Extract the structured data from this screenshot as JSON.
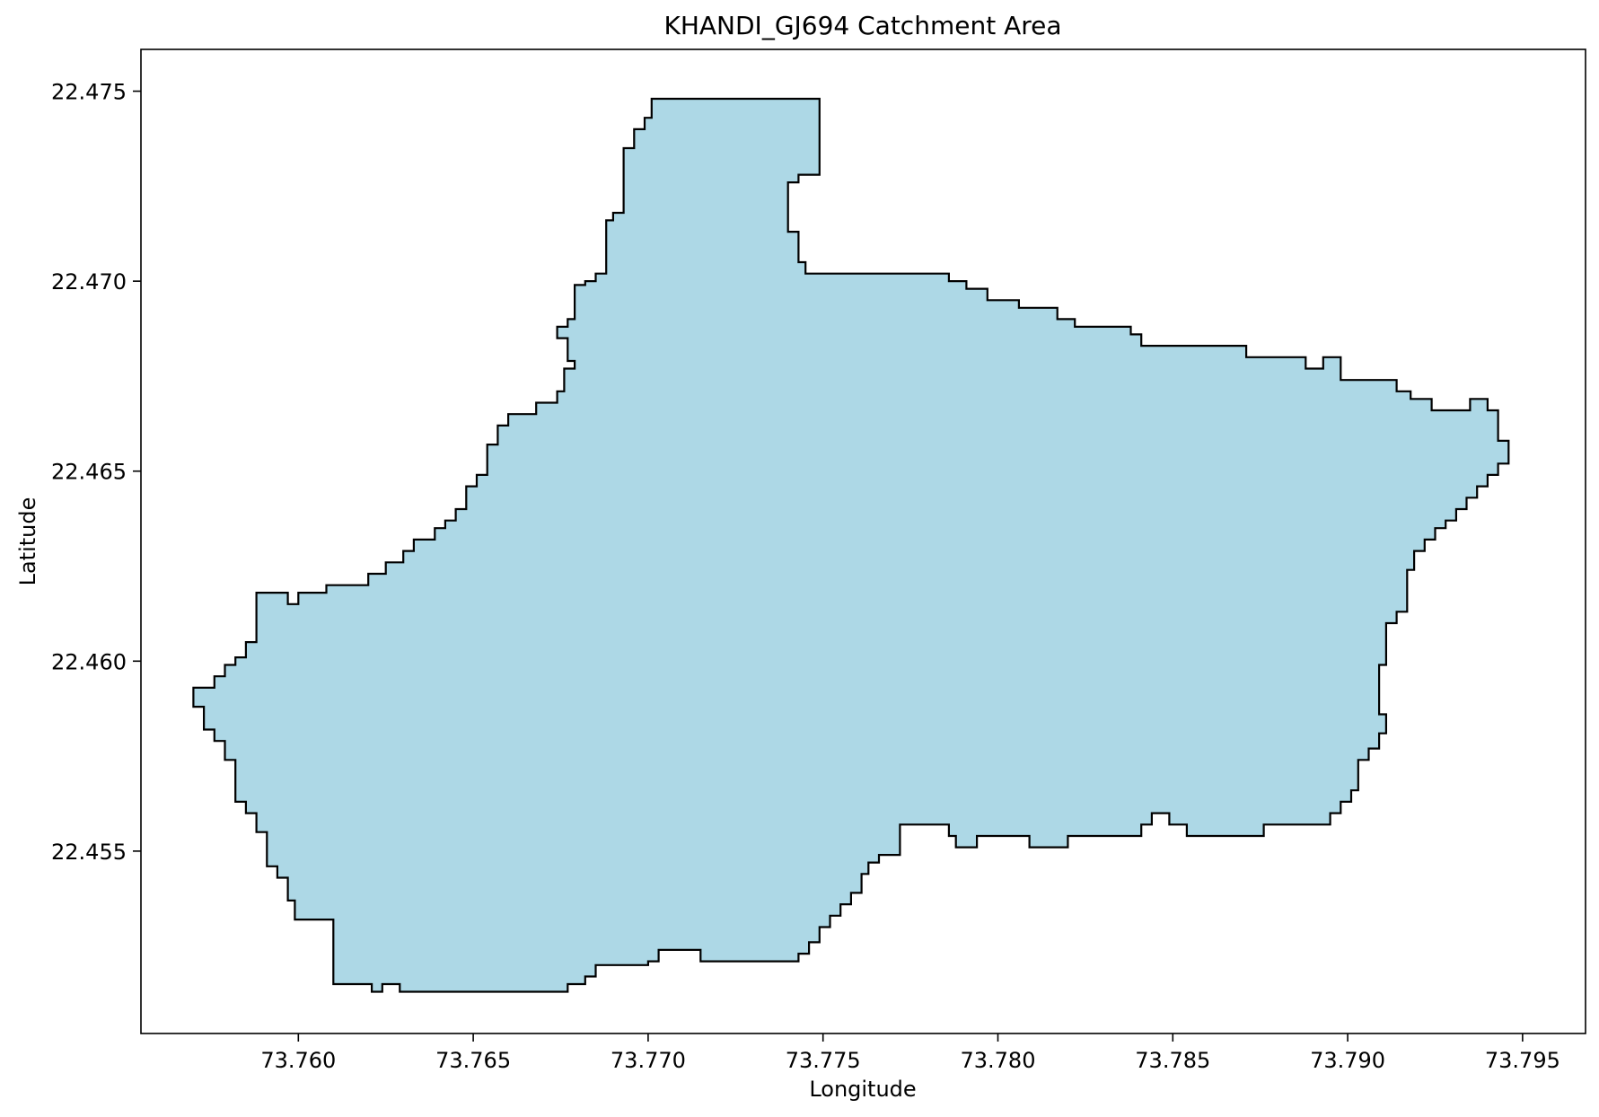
{
  "title": "KHANDI_GJ694 Catchment Area",
  "xlabel": "Longitude",
  "ylabel": "Latitude",
  "x_ticks": [
    "73.760",
    "73.765",
    "73.770",
    "73.775",
    "73.780",
    "73.785",
    "73.790",
    "73.795"
  ],
  "y_ticks": [
    "22.455",
    "22.460",
    "22.465",
    "22.470",
    "22.475"
  ],
  "colors": {
    "fill": "#add8e6",
    "edge": "#000000"
  },
  "map_data": {
    "type": "polygon",
    "xlim": [
      73.7555,
      73.7968
    ],
    "ylim": [
      22.4502,
      22.4761
    ],
    "tick_values_x": [
      73.76,
      73.765,
      73.77,
      73.775,
      73.78,
      73.785,
      73.79,
      73.795
    ],
    "tick_values_y": [
      22.455,
      22.46,
      22.465,
      22.47,
      22.475
    ],
    "boundary": [
      [
        73.7701,
        22.4748
      ],
      [
        73.7749,
        22.4748
      ],
      [
        73.7749,
        22.4728
      ],
      [
        73.7743,
        22.4728
      ],
      [
        73.7743,
        22.4726
      ],
      [
        73.774,
        22.4726
      ],
      [
        73.774,
        22.4713
      ],
      [
        73.7743,
        22.4713
      ],
      [
        73.7743,
        22.4705
      ],
      [
        73.7745,
        22.4705
      ],
      [
        73.7745,
        22.4702
      ],
      [
        73.7786,
        22.4702
      ],
      [
        73.7786,
        22.47
      ],
      [
        73.7791,
        22.47
      ],
      [
        73.7791,
        22.4698
      ],
      [
        73.7797,
        22.4698
      ],
      [
        73.7797,
        22.4695
      ],
      [
        73.7806,
        22.4695
      ],
      [
        73.7806,
        22.4693
      ],
      [
        73.7817,
        22.4693
      ],
      [
        73.7817,
        22.469
      ],
      [
        73.7822,
        22.469
      ],
      [
        73.7822,
        22.4688
      ],
      [
        73.7838,
        22.4688
      ],
      [
        73.7838,
        22.4686
      ],
      [
        73.7841,
        22.4686
      ],
      [
        73.7841,
        22.4683
      ],
      [
        73.7871,
        22.4683
      ],
      [
        73.7871,
        22.468
      ],
      [
        73.7888,
        22.468
      ],
      [
        73.7888,
        22.4677
      ],
      [
        73.7893,
        22.4677
      ],
      [
        73.7893,
        22.468
      ],
      [
        73.7898,
        22.468
      ],
      [
        73.7898,
        22.4674
      ],
      [
        73.7914,
        22.4674
      ],
      [
        73.7914,
        22.4671
      ],
      [
        73.7918,
        22.4671
      ],
      [
        73.7918,
        22.4669
      ],
      [
        73.7924,
        22.4669
      ],
      [
        73.7924,
        22.4666
      ],
      [
        73.7935,
        22.4666
      ],
      [
        73.7935,
        22.4669
      ],
      [
        73.794,
        22.4669
      ],
      [
        73.794,
        22.4666
      ],
      [
        73.7943,
        22.4666
      ],
      [
        73.7943,
        22.4658
      ],
      [
        73.7946,
        22.4658
      ],
      [
        73.7946,
        22.4652
      ],
      [
        73.7943,
        22.4652
      ],
      [
        73.7943,
        22.4649
      ],
      [
        73.794,
        22.4649
      ],
      [
        73.794,
        22.4646
      ],
      [
        73.7937,
        22.4646
      ],
      [
        73.7937,
        22.4643
      ],
      [
        73.7934,
        22.4643
      ],
      [
        73.7934,
        22.464
      ],
      [
        73.7931,
        22.464
      ],
      [
        73.7931,
        22.4637
      ],
      [
        73.7928,
        22.4637
      ],
      [
        73.7928,
        22.4635
      ],
      [
        73.7925,
        22.4635
      ],
      [
        73.7925,
        22.4632
      ],
      [
        73.7922,
        22.4632
      ],
      [
        73.7922,
        22.4629
      ],
      [
        73.7919,
        22.4629
      ],
      [
        73.7919,
        22.4624
      ],
      [
        73.7917,
        22.4624
      ],
      [
        73.7917,
        22.4613
      ],
      [
        73.7914,
        22.4613
      ],
      [
        73.7914,
        22.461
      ],
      [
        73.7911,
        22.461
      ],
      [
        73.7911,
        22.4599
      ],
      [
        73.7909,
        22.4599
      ],
      [
        73.7909,
        22.4586
      ],
      [
        73.7911,
        22.4586
      ],
      [
        73.7911,
        22.4581
      ],
      [
        73.7909,
        22.4581
      ],
      [
        73.7909,
        22.4577
      ],
      [
        73.7906,
        22.4577
      ],
      [
        73.7906,
        22.4574
      ],
      [
        73.7903,
        22.4574
      ],
      [
        73.7903,
        22.4566
      ],
      [
        73.7901,
        22.4566
      ],
      [
        73.7901,
        22.4563
      ],
      [
        73.7898,
        22.4563
      ],
      [
        73.7898,
        22.456
      ],
      [
        73.7895,
        22.456
      ],
      [
        73.7895,
        22.4557
      ],
      [
        73.7876,
        22.4557
      ],
      [
        73.7876,
        22.4554
      ],
      [
        73.7854,
        22.4554
      ],
      [
        73.7854,
        22.4557
      ],
      [
        73.7849,
        22.4557
      ],
      [
        73.7849,
        22.456
      ],
      [
        73.7844,
        22.456
      ],
      [
        73.7844,
        22.4557
      ],
      [
        73.7841,
        22.4557
      ],
      [
        73.7841,
        22.4554
      ],
      [
        73.782,
        22.4554
      ],
      [
        73.782,
        22.4551
      ],
      [
        73.7809,
        22.4551
      ],
      [
        73.7809,
        22.4554
      ],
      [
        73.7794,
        22.4554
      ],
      [
        73.7794,
        22.4551
      ],
      [
        73.7788,
        22.4551
      ],
      [
        73.7788,
        22.4554
      ],
      [
        73.7786,
        22.4554
      ],
      [
        73.7786,
        22.4557
      ],
      [
        73.7772,
        22.4557
      ],
      [
        73.7772,
        22.4549
      ],
      [
        73.7766,
        22.4549
      ],
      [
        73.7766,
        22.4547
      ],
      [
        73.7763,
        22.4547
      ],
      [
        73.7763,
        22.4544
      ],
      [
        73.7761,
        22.4544
      ],
      [
        73.7761,
        22.4539
      ],
      [
        73.7758,
        22.4539
      ],
      [
        73.7758,
        22.4536
      ],
      [
        73.7755,
        22.4536
      ],
      [
        73.7755,
        22.4533
      ],
      [
        73.7752,
        22.4533
      ],
      [
        73.7752,
        22.453
      ],
      [
        73.7749,
        22.453
      ],
      [
        73.7749,
        22.4526
      ],
      [
        73.7746,
        22.4526
      ],
      [
        73.7746,
        22.4523
      ],
      [
        73.7743,
        22.4523
      ],
      [
        73.7743,
        22.4521
      ],
      [
        73.7715,
        22.4521
      ],
      [
        73.7715,
        22.4524
      ],
      [
        73.7703,
        22.4524
      ],
      [
        73.7703,
        22.4521
      ],
      [
        73.77,
        22.4521
      ],
      [
        73.77,
        22.452
      ],
      [
        73.7685,
        22.452
      ],
      [
        73.7685,
        22.4517
      ],
      [
        73.7682,
        22.4517
      ],
      [
        73.7682,
        22.4515
      ],
      [
        73.7677,
        22.4515
      ],
      [
        73.7677,
        22.4513
      ],
      [
        73.7629,
        22.4513
      ],
      [
        73.7629,
        22.4515
      ],
      [
        73.7624,
        22.4515
      ],
      [
        73.7624,
        22.4513
      ],
      [
        73.7621,
        22.4513
      ],
      [
        73.7621,
        22.4515
      ],
      [
        73.761,
        22.4515
      ],
      [
        73.761,
        22.4532
      ],
      [
        73.7599,
        22.4532
      ],
      [
        73.7599,
        22.4537
      ],
      [
        73.7597,
        22.4537
      ],
      [
        73.7597,
        22.4543
      ],
      [
        73.7594,
        22.4543
      ],
      [
        73.7594,
        22.4546
      ],
      [
        73.7591,
        22.4546
      ],
      [
        73.7591,
        22.4555
      ],
      [
        73.7588,
        22.4555
      ],
      [
        73.7588,
        22.456
      ],
      [
        73.7585,
        22.456
      ],
      [
        73.7585,
        22.4563
      ],
      [
        73.7582,
        22.4563
      ],
      [
        73.7582,
        22.4574
      ],
      [
        73.7579,
        22.4574
      ],
      [
        73.7579,
        22.4579
      ],
      [
        73.7576,
        22.4579
      ],
      [
        73.7576,
        22.4582
      ],
      [
        73.7573,
        22.4582
      ],
      [
        73.7573,
        22.4588
      ],
      [
        73.757,
        22.4588
      ],
      [
        73.757,
        22.4593
      ],
      [
        73.7576,
        22.4593
      ],
      [
        73.7576,
        22.4596
      ],
      [
        73.7579,
        22.4596
      ],
      [
        73.7579,
        22.4599
      ],
      [
        73.7582,
        22.4599
      ],
      [
        73.7582,
        22.4601
      ],
      [
        73.7585,
        22.4601
      ],
      [
        73.7585,
        22.4605
      ],
      [
        73.7588,
        22.4605
      ],
      [
        73.7588,
        22.4618
      ],
      [
        73.7597,
        22.4618
      ],
      [
        73.7597,
        22.4615
      ],
      [
        73.76,
        22.4615
      ],
      [
        73.76,
        22.4618
      ],
      [
        73.7608,
        22.4618
      ],
      [
        73.7608,
        22.462
      ],
      [
        73.762,
        22.462
      ],
      [
        73.762,
        22.4623
      ],
      [
        73.7625,
        22.4623
      ],
      [
        73.7625,
        22.4626
      ],
      [
        73.763,
        22.4626
      ],
      [
        73.763,
        22.4629
      ],
      [
        73.7633,
        22.4629
      ],
      [
        73.7633,
        22.4632
      ],
      [
        73.7639,
        22.4632
      ],
      [
        73.7639,
        22.4635
      ],
      [
        73.7642,
        22.4635
      ],
      [
        73.7642,
        22.4637
      ],
      [
        73.7645,
        22.4637
      ],
      [
        73.7645,
        22.464
      ],
      [
        73.7648,
        22.464
      ],
      [
        73.7648,
        22.4646
      ],
      [
        73.7651,
        22.4646
      ],
      [
        73.7651,
        22.4649
      ],
      [
        73.7654,
        22.4649
      ],
      [
        73.7654,
        22.4657
      ],
      [
        73.7657,
        22.4657
      ],
      [
        73.7657,
        22.4662
      ],
      [
        73.766,
        22.4662
      ],
      [
        73.766,
        22.4665
      ],
      [
        73.7668,
        22.4665
      ],
      [
        73.7668,
        22.4668
      ],
      [
        73.7674,
        22.4668
      ],
      [
        73.7674,
        22.4671
      ],
      [
        73.7676,
        22.4671
      ],
      [
        73.7676,
        22.4677
      ],
      [
        73.7679,
        22.4677
      ],
      [
        73.7679,
        22.4679
      ],
      [
        73.7677,
        22.4679
      ],
      [
        73.7677,
        22.4685
      ],
      [
        73.7674,
        22.4685
      ],
      [
        73.7674,
        22.4688
      ],
      [
        73.7677,
        22.4688
      ],
      [
        73.7677,
        22.469
      ],
      [
        73.7679,
        22.469
      ],
      [
        73.7679,
        22.4699
      ],
      [
        73.7682,
        22.4699
      ],
      [
        73.7682,
        22.47
      ],
      [
        73.7685,
        22.47
      ],
      [
        73.7685,
        22.4702
      ],
      [
        73.7688,
        22.4702
      ],
      [
        73.7688,
        22.4716
      ],
      [
        73.769,
        22.4716
      ],
      [
        73.769,
        22.4718
      ],
      [
        73.7693,
        22.4718
      ],
      [
        73.7693,
        22.4735
      ],
      [
        73.7696,
        22.4735
      ],
      [
        73.7696,
        22.474
      ],
      [
        73.7699,
        22.474
      ],
      [
        73.7699,
        22.4743
      ],
      [
        73.7701,
        22.4743
      ],
      [
        73.7701,
        22.4745
      ],
      [
        73.7701,
        22.4748
      ]
    ]
  }
}
